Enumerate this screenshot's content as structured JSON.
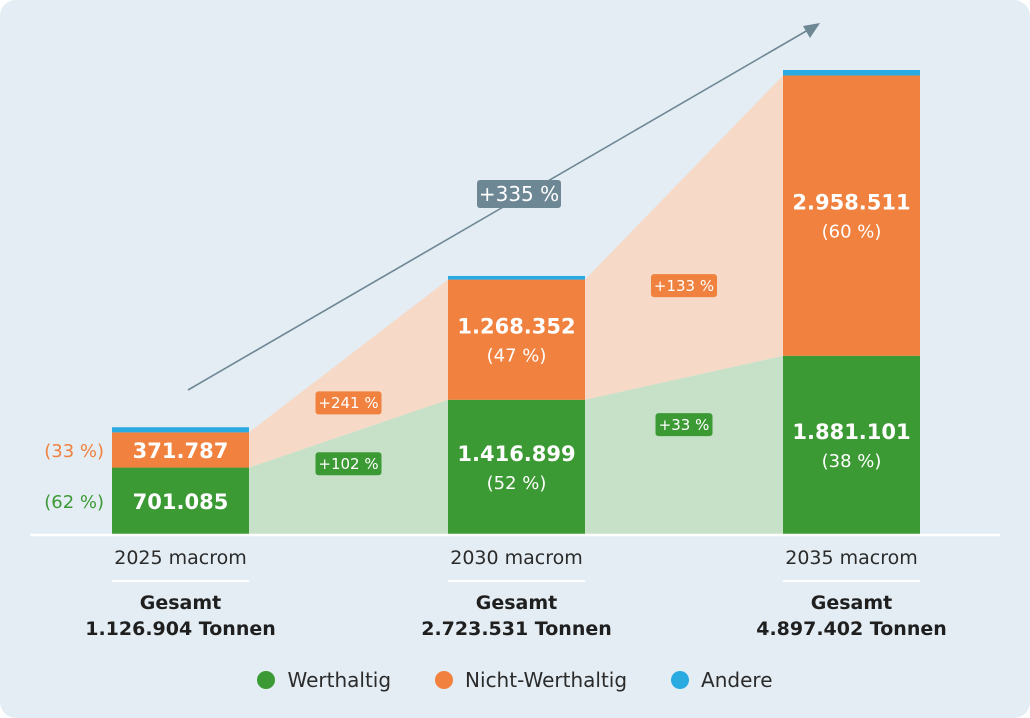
{
  "chart_data": {
    "type": "bar",
    "stacked": true,
    "categories": [
      "2025 macrom",
      "2030 macrom",
      "2035 macrom"
    ],
    "series": [
      {
        "name": "Werthaltig",
        "color": "#3c9a35",
        "values": [
          701085,
          1416899,
          1881101
        ],
        "labels": [
          "701.085",
          "1.416.899",
          "1.881.101"
        ],
        "shares": [
          "(62 %)",
          "(52 %)",
          "(38 %)"
        ]
      },
      {
        "name": "Nicht-Werthaltig",
        "color": "#f0813e",
        "values": [
          371787,
          1268352,
          2958511
        ],
        "labels": [
          "371.787",
          "1.268.352",
          "2.958.511"
        ],
        "shares": [
          "(33 %)",
          "(47 %)",
          "(60 %)"
        ]
      },
      {
        "name": "Andere",
        "color": "#29abe2",
        "values": [
          54032,
          38280,
          57790
        ]
      }
    ],
    "totals": [
      {
        "title": "Gesamt",
        "value": "1.126.904 Tonnen"
      },
      {
        "title": "Gesamt",
        "value": "2.723.531 Tonnen"
      },
      {
        "title": "Gesamt",
        "value": "4.897.402 Tonnen"
      }
    ],
    "growth": {
      "werthaltig": [
        "+102 %",
        "+33 %"
      ],
      "nicht_werthaltig": [
        "+241 %",
        "+133 %"
      ],
      "total": "+335 %"
    },
    "ylim": [
      0,
      4897402
    ],
    "legend_position": "bottom"
  },
  "colors": {
    "background": "#e3edf3",
    "werthaltig": "#3c9a35",
    "werthaltig_band": "#c6e1c7",
    "nicht_werthaltig": "#f0813e",
    "nicht_werthaltig_band": "#f7d9c7",
    "andere": "#29abe2",
    "arrow": "#6e8795",
    "total_badge": "#6e8795",
    "baseline": "#ffffff"
  }
}
